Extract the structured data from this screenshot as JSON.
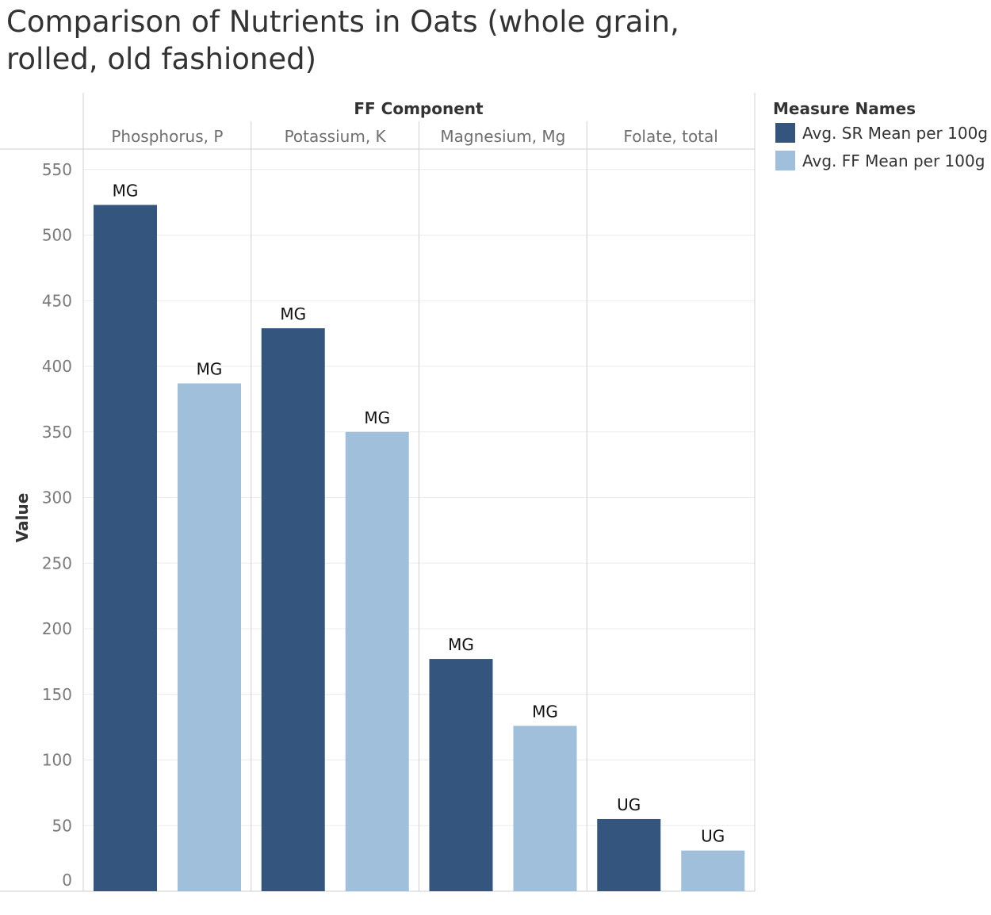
{
  "chart_data": {
    "type": "bar",
    "title": "Comparison of Nutrients in Oats (whole grain, rolled, old fashioned)",
    "column_header": "FF Component",
    "categories": [
      "Phosphorus, P",
      "Potassium, K",
      "Magnesium, Mg",
      "Folate, total"
    ],
    "series": [
      {
        "name": "Avg. SR Mean per 100g",
        "color": "#34567e",
        "values": [
          523,
          429,
          177,
          55
        ],
        "labels": [
          "MG",
          "MG",
          "MG",
          "UG"
        ]
      },
      {
        "name": "Avg. FF Mean per 100g",
        "color": "#9fbfdb",
        "values": [
          387,
          350,
          126,
          31
        ],
        "labels": [
          "MG",
          "MG",
          "MG",
          "UG"
        ]
      }
    ],
    "ylabel": "Value",
    "ylim": [
      0,
      560
    ],
    "yticks": [
      0,
      50,
      100,
      150,
      200,
      250,
      300,
      350,
      400,
      450,
      500,
      550
    ],
    "grid": true,
    "legend": {
      "title": "Measure Names",
      "placement": "right"
    }
  }
}
